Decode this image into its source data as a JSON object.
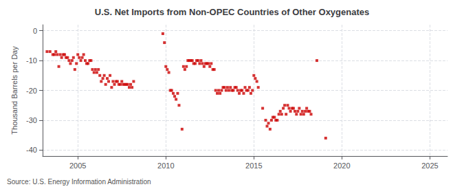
{
  "chart_data": {
    "type": "scatter",
    "title": "U.S. Net Imports from Non-OPEC Countries of Other Oxygenates",
    "ylabel": "Thousand Barrels per Day",
    "source": "Source: U.S. Energy Information Administration",
    "color": "#cc0000",
    "marker": "square",
    "grid": true,
    "xlim": [
      2003.0,
      2026.0
    ],
    "ylim": [
      -42,
      2
    ],
    "xticks": [
      2005,
      2010,
      2015,
      2020,
      2025
    ],
    "yticks": [
      0,
      -10,
      -20,
      -30,
      -40
    ],
    "x": [
      2003.25,
      2003.42,
      2003.58,
      2003.67,
      2003.75,
      2003.83,
      2003.92,
      2004.0,
      2004.08,
      2004.17,
      2004.25,
      2004.33,
      2004.42,
      2004.5,
      2004.58,
      2004.67,
      2004.75,
      2004.83,
      2004.92,
      2005.0,
      2005.08,
      2005.17,
      2005.25,
      2005.33,
      2005.42,
      2005.5,
      2005.58,
      2005.67,
      2005.75,
      2005.83,
      2005.92,
      2006.0,
      2006.08,
      2006.17,
      2006.25,
      2006.33,
      2006.42,
      2006.5,
      2006.58,
      2006.67,
      2006.75,
      2006.83,
      2006.92,
      2007.0,
      2007.08,
      2007.17,
      2007.25,
      2007.33,
      2007.42,
      2007.5,
      2007.58,
      2007.67,
      2007.75,
      2007.83,
      2007.92,
      2008.0,
      2008.08,
      2008.17,
      2009.83,
      2009.92,
      2010.0,
      2010.08,
      2010.17,
      2010.25,
      2010.33,
      2010.42,
      2010.5,
      2010.58,
      2010.67,
      2010.75,
      2010.92,
      2011.0,
      2011.08,
      2011.17,
      2011.25,
      2011.33,
      2011.42,
      2011.5,
      2011.58,
      2011.67,
      2011.75,
      2011.83,
      2011.92,
      2012.0,
      2012.08,
      2012.17,
      2012.25,
      2012.33,
      2012.42,
      2012.5,
      2012.58,
      2012.67,
      2012.75,
      2012.83,
      2012.92,
      2013.0,
      2013.08,
      2013.17,
      2013.25,
      2013.33,
      2013.42,
      2013.5,
      2013.58,
      2013.67,
      2013.75,
      2013.83,
      2013.92,
      2014.0,
      2014.08,
      2014.17,
      2014.25,
      2014.33,
      2014.42,
      2014.5,
      2014.58,
      2014.67,
      2014.75,
      2014.83,
      2014.92,
      2015.0,
      2015.08,
      2015.17,
      2015.25,
      2015.5,
      2015.67,
      2015.75,
      2015.83,
      2015.92,
      2016.0,
      2016.08,
      2016.17,
      2016.25,
      2016.33,
      2016.42,
      2016.5,
      2016.58,
      2016.67,
      2016.75,
      2016.83,
      2016.92,
      2017.0,
      2017.08,
      2017.17,
      2017.25,
      2017.33,
      2017.42,
      2017.5,
      2017.58,
      2017.67,
      2017.75,
      2017.83,
      2017.92,
      2018.0,
      2018.08,
      2018.17,
      2018.25,
      2018.58,
      2019.08
    ],
    "values": [
      -7,
      -7,
      -8,
      -8,
      -7,
      -8,
      -12,
      -8,
      -9,
      -8,
      -8,
      -9,
      -9,
      -10,
      -11,
      -10,
      -9,
      -13,
      -11,
      -8,
      -9,
      -10,
      -9,
      -8,
      -10,
      -11,
      -11,
      -10,
      -10,
      -13,
      -14,
      -13,
      -14,
      -13,
      -15,
      -17,
      -16,
      -15,
      -18,
      -16,
      -17,
      -15,
      -19,
      -17,
      -18,
      -17,
      -17,
      -18,
      -18,
      -17,
      -18,
      -18,
      -18,
      -18,
      -19,
      -18,
      -19,
      -17,
      -1,
      -4,
      -12,
      -13,
      -14,
      -20,
      -20,
      -21,
      -22,
      -23,
      -21,
      -25,
      -33,
      -12,
      -13,
      -12,
      -10,
      -10,
      -10,
      -10,
      -11,
      -11,
      -10,
      -10,
      -11,
      -10,
      -11,
      -12,
      -11,
      -11,
      -11,
      -12,
      -11,
      -13,
      -13,
      -20,
      -21,
      -20,
      -21,
      -20,
      -19,
      -19,
      -20,
      -19,
      -20,
      -19,
      -20,
      -20,
      -19,
      -19,
      -20,
      -21,
      -20,
      -20,
      -21,
      -19,
      -20,
      -20,
      -19,
      -21,
      -20,
      -15,
      -16,
      -17,
      -19,
      -26,
      -30,
      -32,
      -31,
      -33,
      -30,
      -29,
      -29,
      -30,
      -30,
      -28,
      -27,
      -28,
      -26,
      -25,
      -28,
      -25,
      -26,
      -27,
      -26,
      -26,
      -27,
      -28,
      -27,
      -26,
      -28,
      -27,
      -28,
      -27,
      -26,
      -27,
      -27,
      -28,
      -10,
      -36
    ]
  }
}
